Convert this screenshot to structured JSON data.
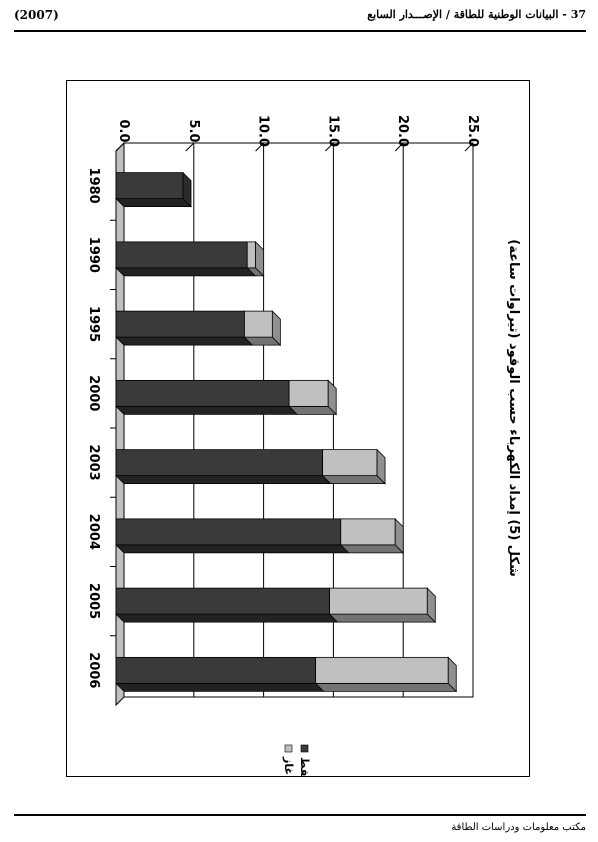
{
  "header": {
    "page_title": "37 - البيانات الوطنية للطاقة / الإصـــدار السابع",
    "edition_year": "(2007)"
  },
  "footer": {
    "text": "مكتب معلومات ودراسات الطاقة"
  },
  "chart_data": {
    "type": "bar",
    "stacked": true,
    "orientation": "rotated-90",
    "title": "شكل (5) إمداد الكهرباء حسب الوقود (تيراوات ساعة)",
    "categories": [
      "1980",
      "1990",
      "1995",
      "2000",
      "2003",
      "2004",
      "2005",
      "2006"
    ],
    "series": [
      {
        "name": "نفط",
        "color": "#3a3a3a",
        "values": [
          4.8,
          9.4,
          9.2,
          12.4,
          14.8,
          16.1,
          15.3,
          14.3
        ]
      },
      {
        "name": "غاز",
        "color": "#c0c0c0",
        "values": [
          0.0,
          0.6,
          2.0,
          2.8,
          3.9,
          3.9,
          7.0,
          9.5
        ]
      }
    ],
    "value_axis": {
      "range": [
        0,
        25
      ],
      "ticks": [
        "0.0",
        "5.0",
        "10.0",
        "15.0",
        "20.0",
        "25.0"
      ]
    },
    "grid": true,
    "legend_position": "bottom"
  }
}
